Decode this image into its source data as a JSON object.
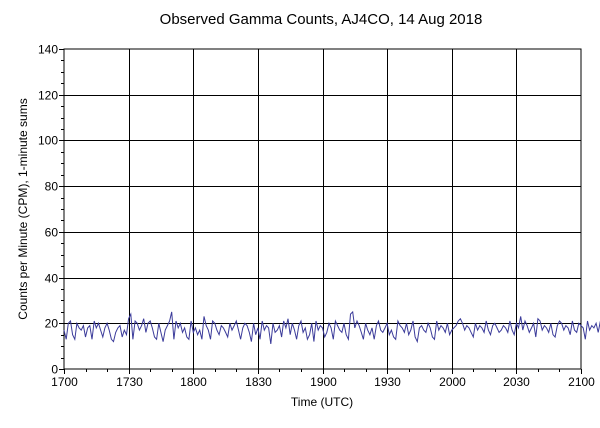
{
  "chart_data": {
    "type": "line",
    "title": "Observed Gamma Counts, AJ4CO, 14 Aug 2018",
    "xlabel": "Time (UTC)",
    "ylabel": "Counts per Minute (CPM), 1-minute sums",
    "xlim_minutes": [
      1020,
      1260
    ],
    "ylim": [
      0,
      140
    ],
    "x_ticks": [
      {
        "label": "1700",
        "minute": 1020
      },
      {
        "label": "1730",
        "minute": 1050
      },
      {
        "label": "1800",
        "minute": 1080
      },
      {
        "label": "1830",
        "minute": 1110
      },
      {
        "label": "1900",
        "minute": 1140
      },
      {
        "label": "1930",
        "minute": 1170
      },
      {
        "label": "2000",
        "minute": 1200
      },
      {
        "label": "2030",
        "minute": 1230
      },
      {
        "label": "2100",
        "minute": 1260
      }
    ],
    "y_ticks": [
      0,
      20,
      40,
      60,
      80,
      100,
      120,
      140
    ],
    "grid": true,
    "line_color": "#3b3b9a",
    "series": [
      {
        "start_minute": 1020,
        "step_minutes": 1,
        "values": [
          17,
          13,
          20,
          21,
          15,
          13,
          20,
          18,
          17,
          19,
          14,
          18,
          19,
          13,
          21,
          18,
          20,
          17,
          14,
          18,
          20,
          17,
          13,
          12,
          16,
          18,
          19,
          14,
          17,
          15,
          22,
          24,
          13,
          21,
          20,
          17,
          19,
          22,
          16,
          20,
          21,
          18,
          14,
          13,
          20,
          16,
          12,
          17,
          19,
          21,
          25,
          13,
          21,
          18,
          20,
          16,
          18,
          14,
          13,
          21,
          16,
          18,
          15,
          17,
          13,
          23,
          19,
          17,
          13,
          21,
          20,
          17,
          15,
          19,
          18,
          16,
          14,
          20,
          17,
          19,
          21,
          17,
          13,
          18,
          20,
          19,
          16,
          12,
          20,
          15,
          18,
          13,
          21,
          17,
          19,
          18,
          11,
          20,
          16,
          17,
          19,
          14,
          21,
          18,
          22,
          15,
          20,
          17,
          13,
          19,
          21,
          16,
          18,
          13,
          15,
          20,
          12,
          21,
          17,
          19,
          18,
          14,
          16,
          20,
          18,
          13,
          21,
          19,
          17,
          16,
          20,
          15,
          13,
          24,
          25,
          18,
          21,
          19,
          16,
          13,
          20,
          17,
          15,
          18,
          13,
          19,
          21,
          17,
          16,
          18,
          20,
          15,
          17,
          14,
          13,
          21,
          19,
          18,
          16,
          20,
          15,
          17,
          21,
          14,
          12,
          18,
          19,
          17,
          16,
          20,
          18,
          14,
          13,
          21,
          17,
          19,
          18,
          16,
          20,
          15,
          17,
          18,
          19,
          21,
          22,
          20,
          17,
          19,
          18,
          16,
          14,
          20,
          17,
          19,
          18,
          16,
          21,
          17,
          15,
          19,
          20,
          18,
          16,
          17,
          19,
          18,
          16,
          21,
          17,
          15,
          20,
          18,
          23,
          17,
          21,
          19,
          16,
          18,
          20,
          14,
          22,
          21,
          17,
          19,
          18,
          16,
          20,
          15,
          14,
          19,
          21,
          20,
          17,
          19,
          18,
          15,
          21,
          17,
          16,
          20,
          19,
          18,
          13,
          21,
          17,
          19,
          18,
          20,
          16,
          21,
          17
        ]
      }
    ]
  }
}
